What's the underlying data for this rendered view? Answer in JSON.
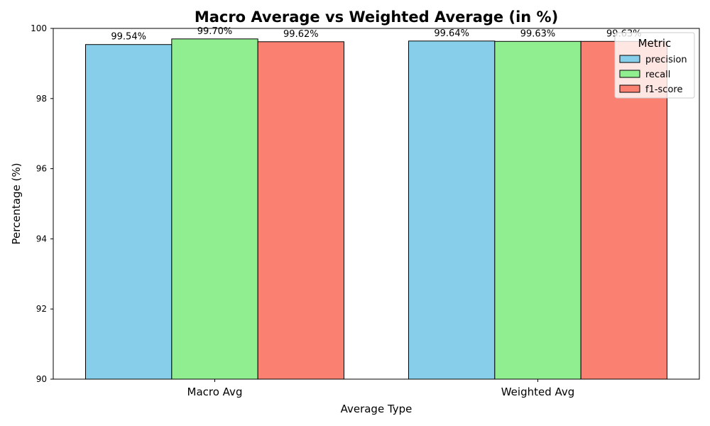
{
  "chart_data": {
    "type": "bar",
    "title": "Macro Average vs Weighted Average (in %)",
    "xlabel": "Average Type",
    "ylabel": "Percentage (%)",
    "categories": [
      "Macro Avg",
      "Weighted Avg"
    ],
    "ylim": [
      90,
      100
    ],
    "yticks": [
      "90",
      "92",
      "94",
      "96",
      "98",
      "100"
    ],
    "grid": false,
    "legend": {
      "title": "Metric",
      "placement": "top-right"
    },
    "series": [
      {
        "name": "precision",
        "color": "#87CEEB",
        "values": [
          99.54,
          99.64
        ],
        "labels": [
          "99.54%",
          "99.64%"
        ]
      },
      {
        "name": "recall",
        "color": "#90EE90",
        "values": [
          99.7,
          99.63
        ],
        "labels": [
          "99.70%",
          "99.63%"
        ]
      },
      {
        "name": "f1-score",
        "color": "#FA8072",
        "values": [
          99.62,
          99.63
        ],
        "labels": [
          "99.62%",
          "99.63%"
        ]
      }
    ]
  }
}
